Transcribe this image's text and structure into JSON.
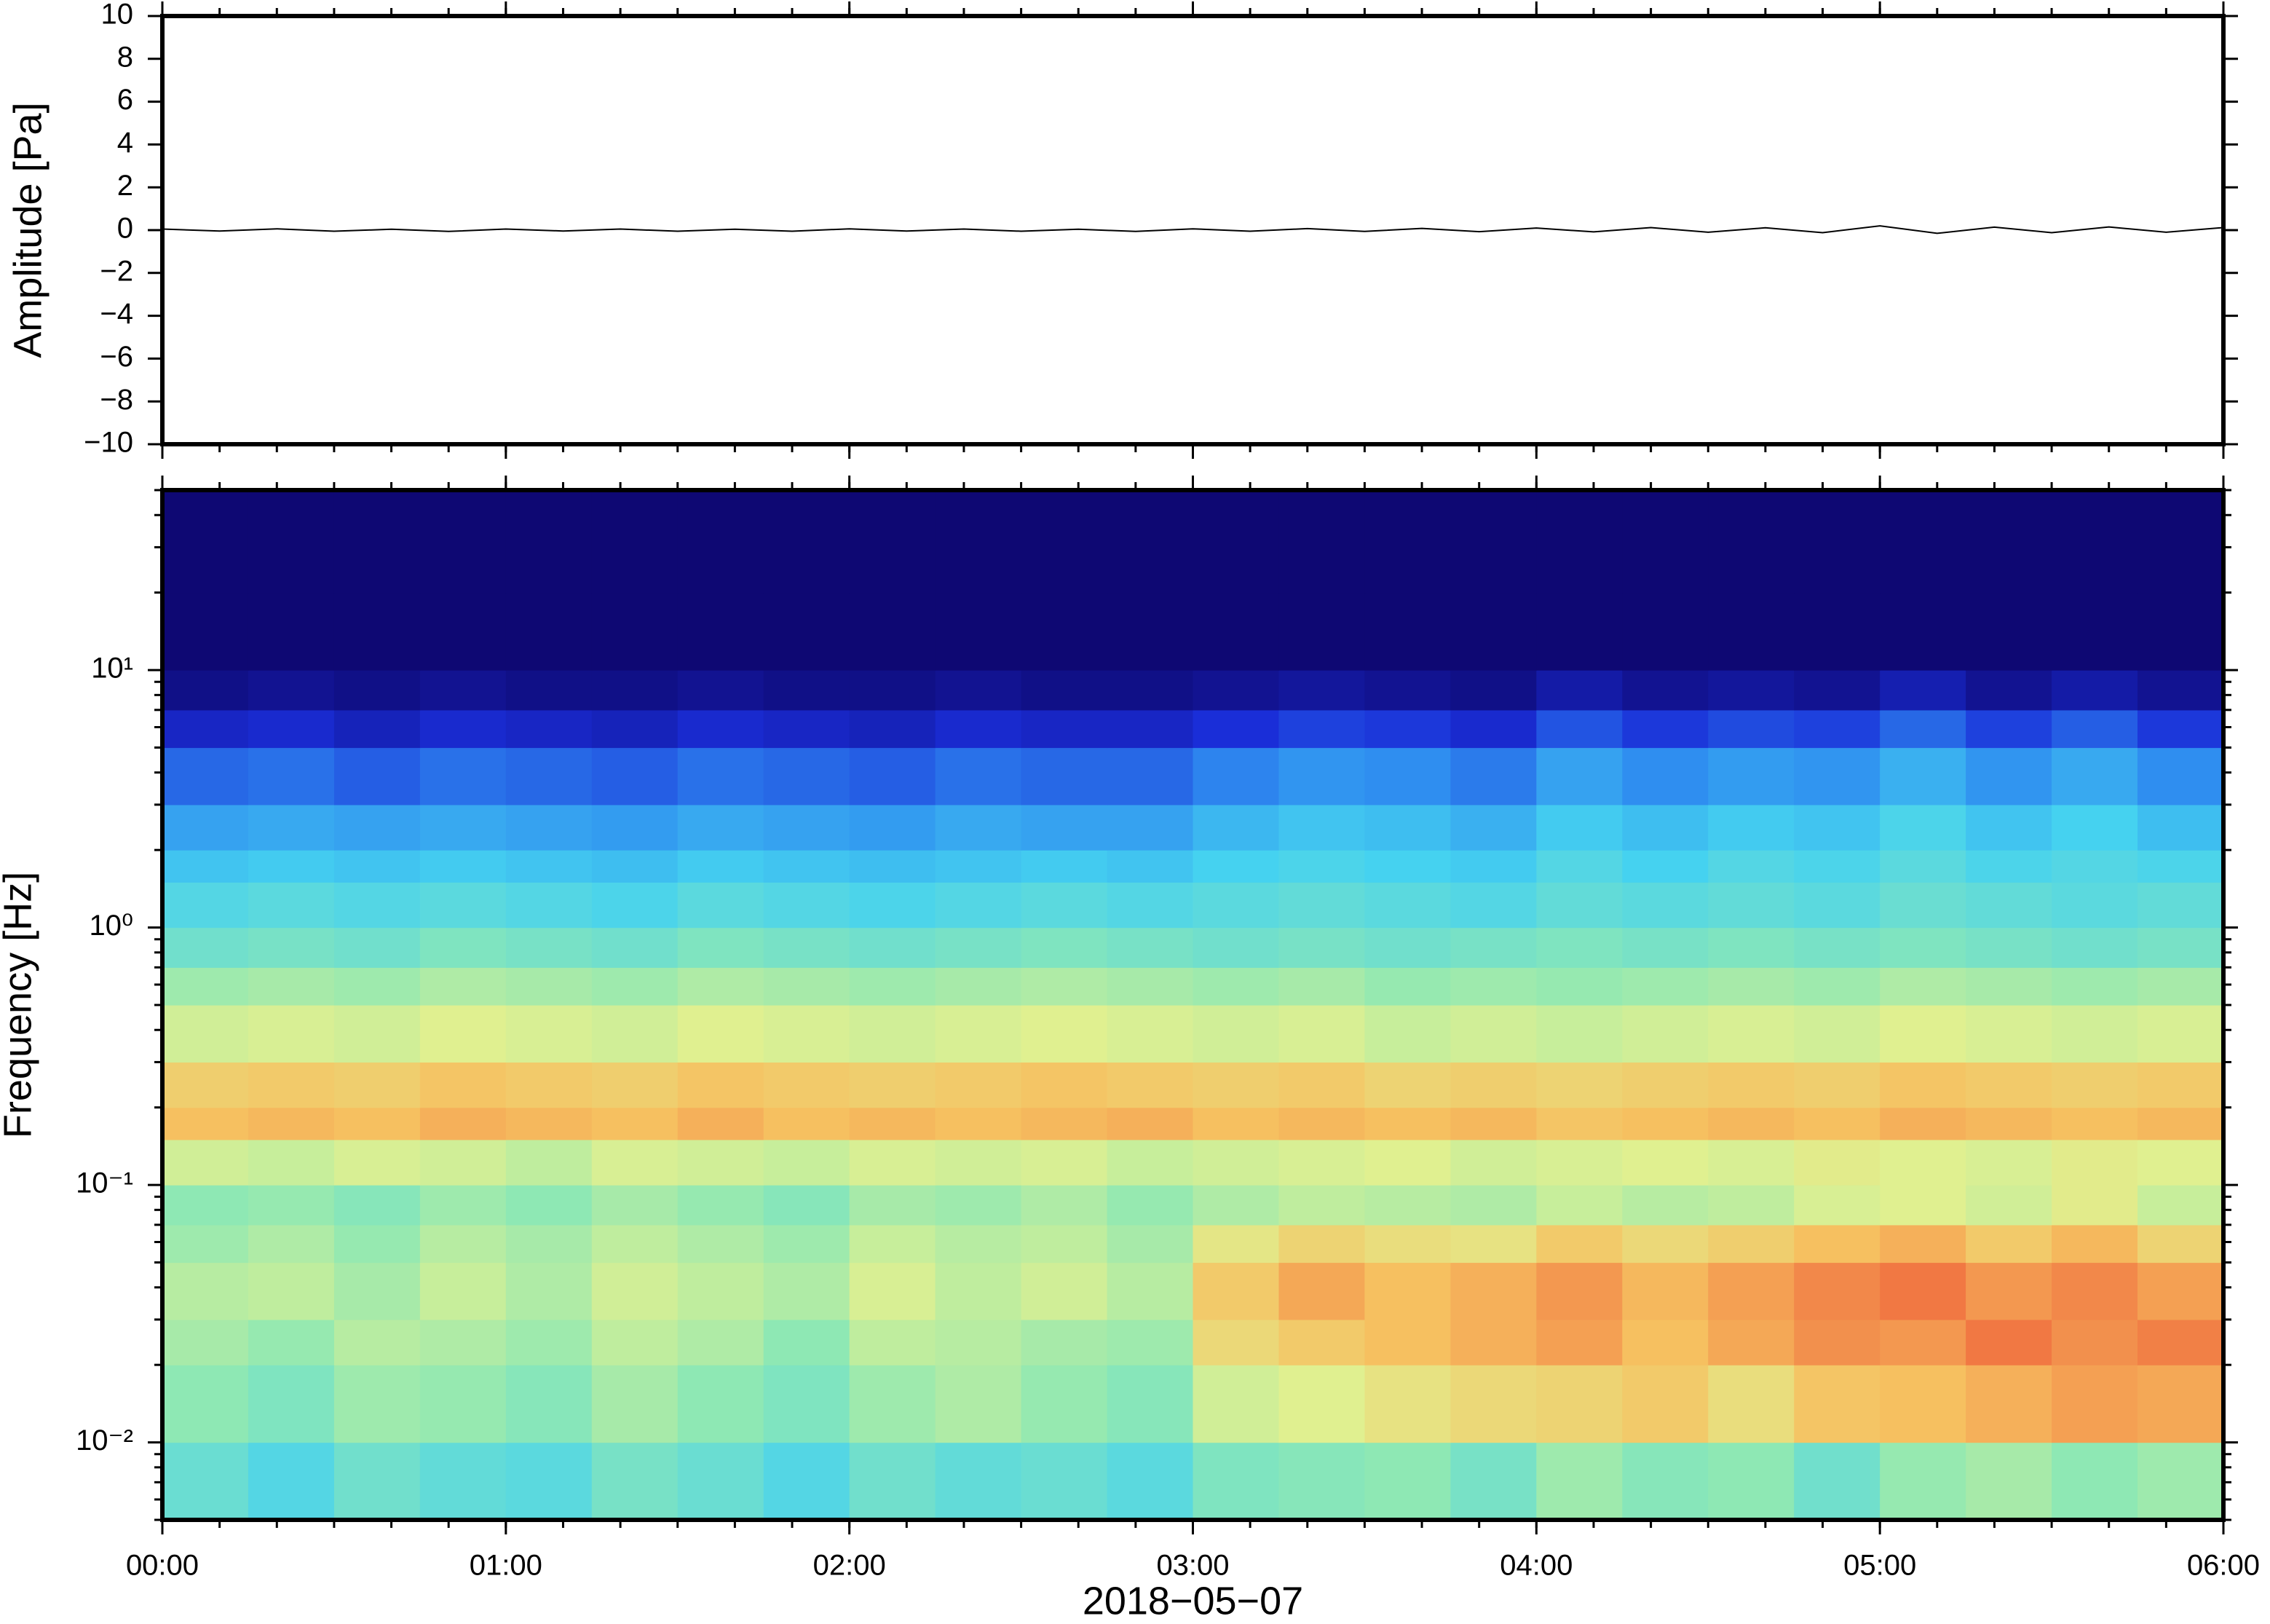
{
  "chart_data": [
    {
      "type": "line",
      "ylabel": "Amplitude [Pa]",
      "x": [
        0,
        10,
        20,
        30,
        40,
        50,
        60,
        70,
        80,
        90,
        100,
        110,
        120,
        130,
        140,
        150,
        160,
        170,
        180,
        190,
        200,
        210,
        220,
        230,
        240,
        250,
        260,
        270,
        280,
        290,
        300,
        310,
        320,
        330,
        340,
        350,
        360
      ],
      "series": [
        {
          "color": "#000000",
          "values": [
            0.05,
            -0.04,
            0.06,
            -0.05,
            0.04,
            -0.06,
            0.05,
            -0.04,
            0.05,
            -0.05,
            0.04,
            -0.05,
            0.06,
            -0.04,
            0.05,
            -0.05,
            0.04,
            -0.06,
            0.06,
            -0.05,
            0.07,
            -0.06,
            0.08,
            -0.07,
            0.1,
            -0.08,
            0.12,
            -0.1,
            0.11,
            -0.12,
            0.2,
            -0.15,
            0.14,
            -0.12,
            0.15,
            -0.1,
            0.12
          ]
        }
      ],
      "xlim": [
        0,
        360
      ],
      "xticks": [
        0,
        60,
        120,
        180,
        240,
        300,
        360
      ],
      "xminorticks": [
        0,
        10,
        20,
        30,
        40,
        50,
        60,
        70,
        80,
        90,
        100,
        110,
        120,
        130,
        140,
        150,
        160,
        170,
        180,
        190,
        200,
        210,
        220,
        230,
        240,
        250,
        260,
        270,
        280,
        290,
        300,
        310,
        320,
        330,
        340,
        350,
        360
      ],
      "ylim": [
        -10,
        10
      ],
      "yticks": [
        {
          "value": -10,
          "label": "−10"
        },
        {
          "value": -8,
          "label": "−8"
        },
        {
          "value": -6,
          "label": "−6"
        },
        {
          "value": -4,
          "label": "−4"
        },
        {
          "value": -2,
          "label": "−2"
        },
        0,
        2,
        4,
        6,
        8,
        10
      ]
    },
    {
      "type": "heatmap",
      "ylabel": "Frequency [Hz]",
      "xlabel": "2018−05−07",
      "log_y": true,
      "colormap": [
        "#0e0873",
        "#1a2ed8",
        "#2f8ef0",
        "#45d2f0",
        "#8ee8b4",
        "#e0f090",
        "#f6c060",
        "#f07040",
        "#e03838"
      ],
      "clim": [
        0,
        8
      ],
      "x_edges": [
        0,
        15,
        30,
        45,
        60,
        75,
        90,
        105,
        120,
        135,
        150,
        165,
        180,
        195,
        210,
        225,
        240,
        255,
        270,
        285,
        300,
        315,
        330,
        345,
        360
      ],
      "y_edges": [
        0.005,
        0.01,
        0.02,
        0.03,
        0.05,
        0.07,
        0.1,
        0.15,
        0.2,
        0.3,
        0.5,
        0.7,
        1,
        1.5,
        2,
        3,
        5,
        7,
        10,
        20,
        50
      ],
      "values": [
        [
          3.5,
          3.2,
          3.6,
          3.4,
          3.3,
          3.7,
          3.5,
          3.2,
          3.6,
          3.4,
          3.5,
          3.3,
          3.8,
          3.9,
          4.0,
          3.7,
          4.2,
          3.9,
          4.0,
          3.6,
          4.1,
          4.3,
          4.0,
          4.2
        ],
        [
          4.0,
          3.8,
          4.2,
          4.1,
          3.9,
          4.3,
          4.0,
          3.8,
          4.2,
          4.4,
          4.1,
          3.9,
          4.8,
          5.0,
          5.3,
          5.5,
          5.6,
          5.8,
          5.4,
          5.9,
          6.0,
          6.2,
          6.4,
          6.3
        ],
        [
          4.3,
          4.1,
          4.5,
          4.4,
          4.2,
          4.6,
          4.4,
          4.0,
          4.6,
          4.5,
          4.3,
          4.2,
          5.5,
          5.8,
          6.0,
          6.2,
          6.4,
          6.0,
          6.3,
          6.6,
          6.5,
          6.9,
          6.6,
          6.8
        ],
        [
          4.5,
          4.6,
          4.3,
          4.7,
          4.4,
          4.8,
          4.6,
          4.4,
          4.9,
          4.6,
          4.8,
          4.5,
          5.8,
          6.3,
          6.0,
          6.2,
          6.5,
          6.1,
          6.4,
          6.7,
          6.9,
          6.5,
          6.7,
          6.4
        ],
        [
          4.2,
          4.4,
          4.1,
          4.5,
          4.3,
          4.6,
          4.4,
          4.2,
          4.7,
          4.5,
          4.6,
          4.3,
          5.2,
          5.6,
          5.4,
          5.3,
          5.8,
          5.5,
          5.7,
          6.0,
          6.2,
          5.8,
          6.1,
          5.6
        ],
        [
          4.0,
          4.1,
          3.9,
          4.2,
          4.0,
          4.3,
          4.1,
          3.9,
          4.3,
          4.2,
          4.4,
          4.1,
          4.4,
          4.6,
          4.5,
          4.4,
          4.7,
          4.5,
          4.6,
          4.9,
          5.0,
          4.8,
          5.1,
          4.7
        ],
        [
          4.8,
          4.7,
          4.9,
          4.8,
          4.6,
          4.9,
          4.8,
          4.7,
          4.9,
          4.8,
          4.9,
          4.7,
          4.8,
          4.9,
          5.0,
          4.8,
          4.9,
          5.0,
          4.9,
          5.1,
          5.0,
          4.9,
          5.1,
          5.0
        ],
        [
          6.0,
          6.1,
          6.0,
          6.2,
          6.1,
          6.0,
          6.2,
          6.0,
          6.1,
          6.0,
          6.1,
          6.2,
          6.0,
          6.1,
          6.0,
          6.1,
          5.9,
          6.0,
          6.1,
          6.0,
          6.2,
          6.1,
          6.0,
          6.1
        ],
        [
          5.7,
          5.8,
          5.7,
          5.9,
          5.8,
          5.7,
          5.9,
          5.8,
          5.7,
          5.8,
          5.9,
          5.8,
          5.7,
          5.8,
          5.6,
          5.7,
          5.6,
          5.7,
          5.8,
          5.7,
          5.9,
          5.8,
          5.7,
          5.8
        ],
        [
          4.8,
          4.9,
          4.8,
          5.0,
          4.9,
          4.8,
          5.0,
          4.9,
          4.8,
          4.9,
          5.0,
          4.9,
          4.8,
          4.9,
          4.7,
          4.8,
          4.7,
          4.8,
          4.9,
          4.8,
          5.0,
          4.9,
          4.8,
          4.9
        ],
        [
          4.2,
          4.3,
          4.2,
          4.4,
          4.3,
          4.2,
          4.4,
          4.3,
          4.2,
          4.3,
          4.4,
          4.3,
          4.2,
          4.3,
          4.1,
          4.2,
          4.1,
          4.2,
          4.3,
          4.2,
          4.4,
          4.3,
          4.2,
          4.3
        ],
        [
          3.6,
          3.7,
          3.6,
          3.8,
          3.7,
          3.6,
          3.8,
          3.7,
          3.6,
          3.7,
          3.8,
          3.7,
          3.6,
          3.7,
          3.6,
          3.7,
          3.8,
          3.7,
          3.8,
          3.7,
          3.8,
          3.7,
          3.6,
          3.7
        ],
        [
          3.2,
          3.3,
          3.2,
          3.3,
          3.2,
          3.1,
          3.3,
          3.2,
          3.1,
          3.2,
          3.3,
          3.2,
          3.3,
          3.4,
          3.3,
          3.2,
          3.4,
          3.3,
          3.4,
          3.3,
          3.5,
          3.4,
          3.3,
          3.4
        ],
        [
          2.8,
          2.9,
          2.8,
          2.9,
          2.8,
          2.7,
          2.9,
          2.8,
          2.7,
          2.8,
          2.9,
          2.8,
          3.0,
          3.1,
          3.0,
          2.9,
          3.2,
          3.0,
          3.2,
          3.1,
          3.3,
          3.1,
          3.2,
          3.1
        ],
        [
          2.3,
          2.4,
          2.3,
          2.4,
          2.3,
          2.2,
          2.4,
          2.3,
          2.2,
          2.4,
          2.3,
          2.3,
          2.6,
          2.8,
          2.7,
          2.5,
          2.9,
          2.7,
          2.9,
          2.8,
          3.1,
          2.8,
          3.0,
          2.7
        ],
        [
          1.6,
          1.7,
          1.5,
          1.7,
          1.6,
          1.5,
          1.7,
          1.6,
          1.5,
          1.7,
          1.6,
          1.6,
          1.9,
          2.1,
          2.0,
          1.8,
          2.3,
          2.0,
          2.2,
          2.1,
          2.5,
          2.1,
          2.4,
          2.0
        ],
        [
          0.8,
          0.9,
          0.7,
          0.9,
          0.8,
          0.7,
          0.9,
          0.8,
          0.7,
          0.9,
          0.8,
          0.8,
          1.0,
          1.2,
          1.1,
          0.9,
          1.4,
          1.1,
          1.3,
          1.2,
          1.6,
          1.2,
          1.5,
          1.1
        ],
        [
          0.2,
          0.3,
          0.2,
          0.3,
          0.2,
          0.2,
          0.3,
          0.2,
          0.2,
          0.3,
          0.2,
          0.2,
          0.3,
          0.4,
          0.3,
          0.2,
          0.5,
          0.3,
          0.4,
          0.3,
          0.6,
          0.3,
          0.5,
          0.3
        ],
        [
          0,
          0,
          0,
          0,
          0,
          0,
          0,
          0,
          0,
          0,
          0,
          0,
          0,
          0,
          0,
          0,
          0,
          0,
          0,
          0,
          0,
          0,
          0,
          0
        ],
        [
          0,
          0,
          0,
          0,
          0,
          0,
          0,
          0,
          0,
          0,
          0,
          0,
          0,
          0,
          0,
          0,
          0,
          0,
          0,
          0,
          0,
          0,
          0,
          0
        ]
      ],
      "xlim": [
        0,
        360
      ],
      "xticks": [
        {
          "value": 0,
          "label": "00:00"
        },
        {
          "value": 60,
          "label": "01:00"
        },
        {
          "value": 120,
          "label": "02:00"
        },
        {
          "value": 180,
          "label": "03:00"
        },
        {
          "value": 240,
          "label": "04:00"
        },
        {
          "value": 300,
          "label": "05:00"
        },
        {
          "value": 360,
          "label": "06:00"
        }
      ],
      "xminorticks": [
        0,
        10,
        20,
        30,
        40,
        50,
        60,
        70,
        80,
        90,
        100,
        110,
        120,
        130,
        140,
        150,
        160,
        170,
        180,
        190,
        200,
        210,
        220,
        230,
        240,
        250,
        260,
        270,
        280,
        290,
        300,
        310,
        320,
        330,
        340,
        350,
        360
      ],
      "ylim": [
        0.005,
        50
      ],
      "yticks": [
        {
          "value": 0.01,
          "label": "10⁻²"
        },
        {
          "value": 0.1,
          "label": "10⁻¹"
        },
        {
          "value": 1,
          "label": "10⁰"
        },
        {
          "value": 10,
          "label": "10¹"
        }
      ],
      "yminorticks": [
        0.005,
        0.006,
        0.007,
        0.008,
        0.009,
        0.02,
        0.03,
        0.04,
        0.05,
        0.06,
        0.07,
        0.08,
        0.09,
        0.2,
        0.3,
        0.4,
        0.5,
        0.6,
        0.7,
        0.8,
        0.9,
        2,
        3,
        4,
        5,
        6,
        7,
        8,
        9,
        20,
        30,
        40,
        50
      ]
    }
  ]
}
